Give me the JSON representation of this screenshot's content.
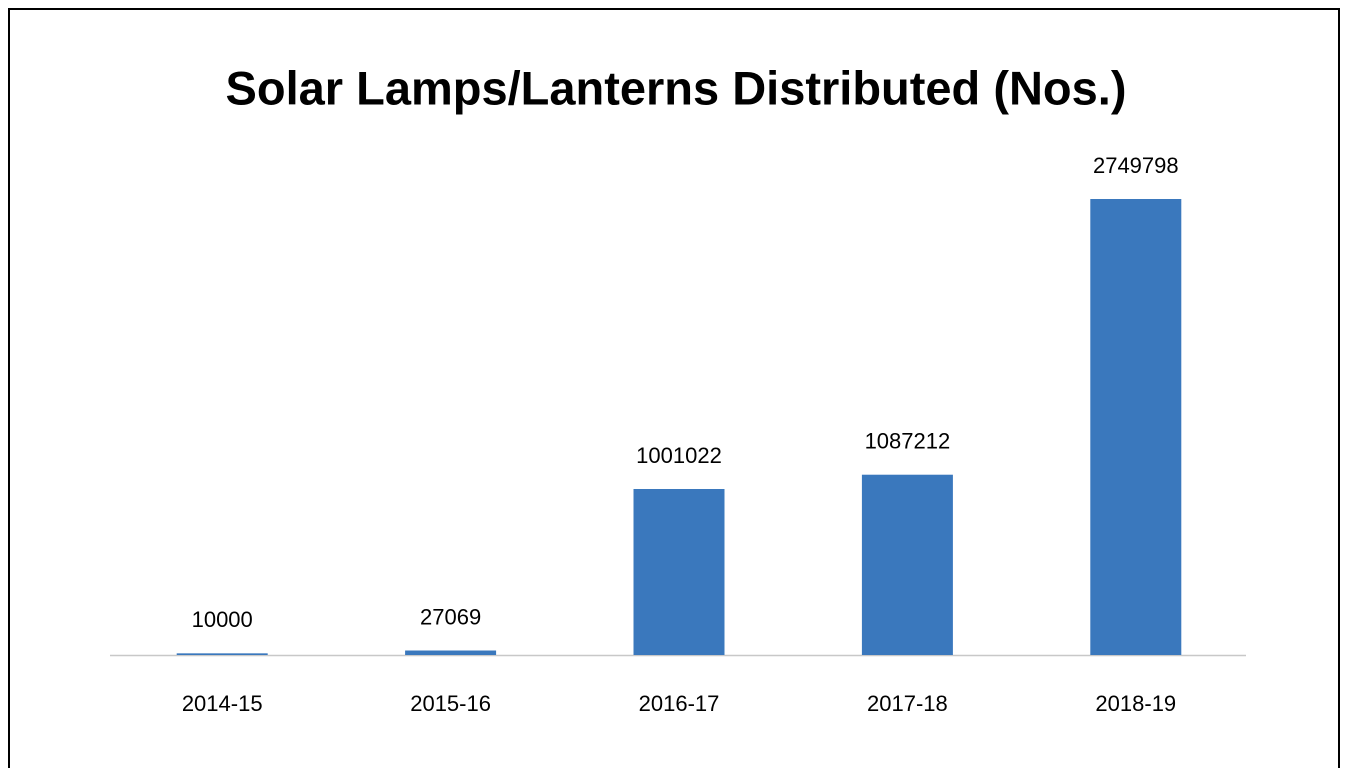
{
  "chart_data": {
    "type": "bar",
    "title": "Solar Lamps/Lanterns Distributed (Nos.)",
    "categories": [
      "2014-15",
      "2015-16",
      "2016-17",
      "2017-18",
      "2018-19"
    ],
    "values": [
      10000,
      27069,
      1001022,
      1087212,
      2749798
    ],
    "color": "#3a78bd"
  }
}
